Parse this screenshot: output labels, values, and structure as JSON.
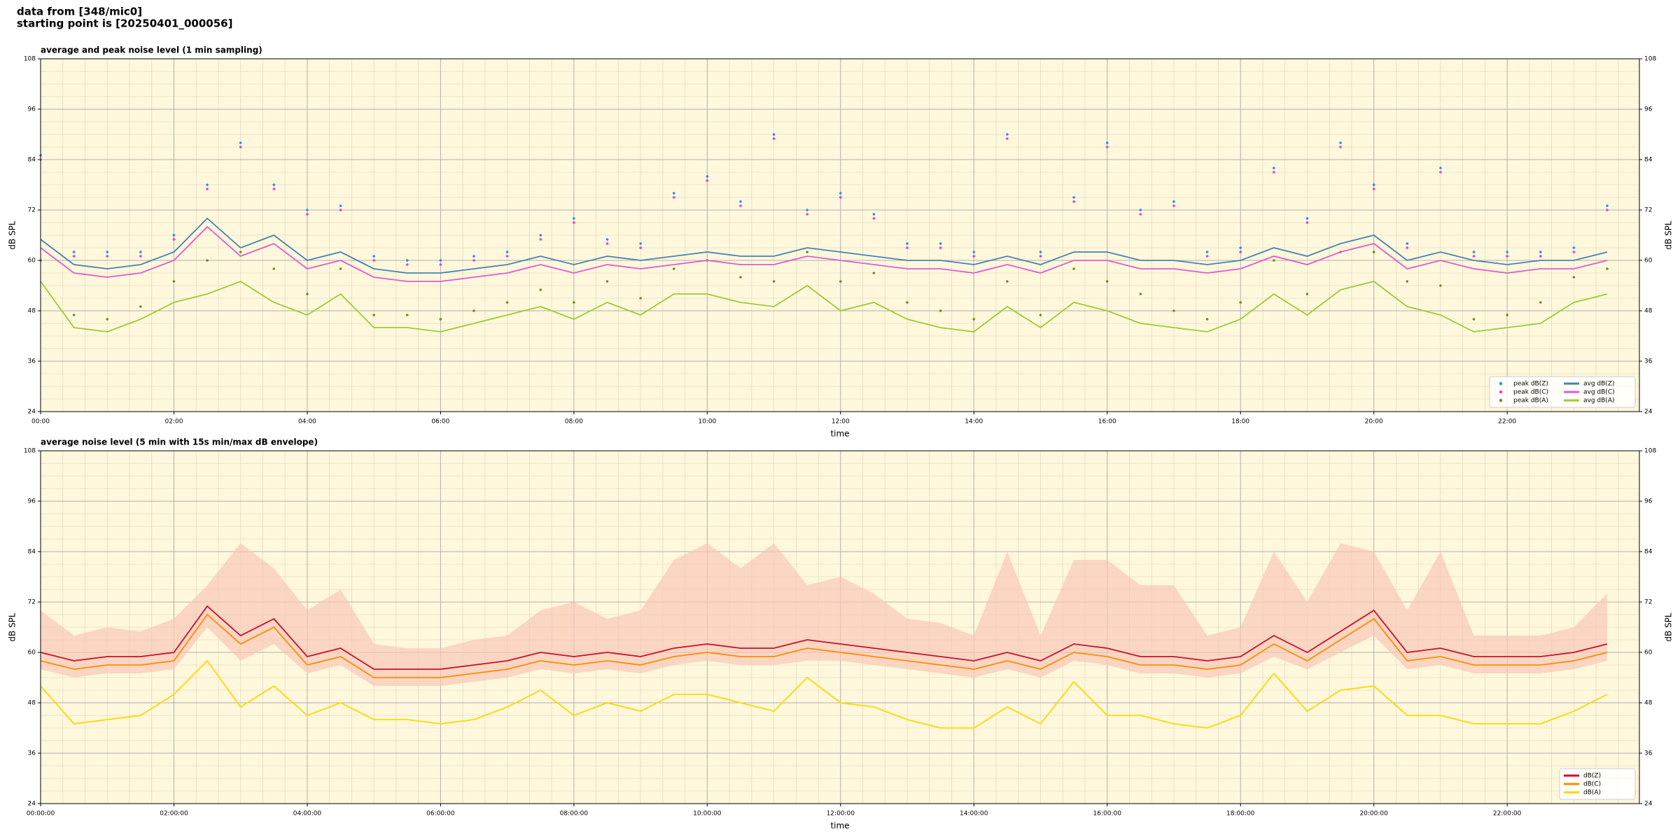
{
  "header": {
    "lines": [
      "data from [348/mic0]",
      "starting point is [20250401_000056]"
    ]
  },
  "chart_data": [
    {
      "type": "line",
      "title": "average and peak noise level (1 min sampling)",
      "xlabel": "time",
      "ylabel": "dB SPL",
      "legend": "lower right",
      "legend_columns": 2,
      "grid": true,
      "background": "#fff8dc",
      "xlim": [
        "00:00",
        "23:59"
      ],
      "xticks": [
        "00:00",
        "02:00",
        "04:00",
        "06:00",
        "08:00",
        "10:00",
        "12:00",
        "14:00",
        "16:00",
        "18:00",
        "20:00",
        "22:00"
      ],
      "ylim": [
        24,
        108
      ],
      "yticks": [
        24,
        36,
        48,
        60,
        72,
        84,
        96,
        108
      ],
      "x": [
        "00:00",
        "00:30",
        "01:00",
        "01:30",
        "02:00",
        "02:30",
        "03:00",
        "03:30",
        "04:00",
        "04:30",
        "05:00",
        "05:30",
        "06:00",
        "06:30",
        "07:00",
        "07:30",
        "08:00",
        "08:30",
        "09:00",
        "09:30",
        "10:00",
        "10:30",
        "11:00",
        "11:30",
        "12:00",
        "12:30",
        "13:00",
        "13:30",
        "14:00",
        "14:30",
        "15:00",
        "15:30",
        "16:00",
        "16:30",
        "17:00",
        "17:30",
        "18:00",
        "18:30",
        "19:00",
        "19:30",
        "20:00",
        "20:30",
        "21:00",
        "21:30",
        "22:00",
        "22:30",
        "23:00",
        "23:30"
      ],
      "series": [
        {
          "name": "peak dB(Z)",
          "mark": "dot",
          "color": "#1f8fff",
          "values": [
            85,
            62,
            62,
            62,
            66,
            78,
            88,
            78,
            72,
            73,
            61,
            60,
            60,
            61,
            62,
            66,
            70,
            65,
            64,
            76,
            80,
            74,
            90,
            72,
            76,
            71,
            64,
            64,
            62,
            90,
            62,
            75,
            88,
            72,
            74,
            62,
            63,
            82,
            70,
            88,
            78,
            64,
            82,
            62,
            62,
            62,
            63,
            73
          ]
        },
        {
          "name": "peak dB(C)",
          "mark": "dot",
          "color": "#ff33cc",
          "values": [
            84,
            61,
            61,
            61,
            65,
            77,
            87,
            77,
            71,
            72,
            60,
            59,
            59,
            60,
            61,
            65,
            69,
            64,
            63,
            75,
            79,
            73,
            89,
            71,
            75,
            70,
            63,
            63,
            61,
            89,
            61,
            74,
            87,
            71,
            73,
            61,
            62,
            81,
            69,
            87,
            77,
            63,
            81,
            61,
            61,
            61,
            62,
            72
          ]
        },
        {
          "name": "peak dB(A)",
          "mark": "dot",
          "color": "#6b8e23",
          "values": [
            60,
            47,
            46,
            49,
            55,
            60,
            62,
            58,
            52,
            58,
            47,
            47,
            46,
            48,
            50,
            53,
            50,
            55,
            51,
            58,
            60,
            56,
            55,
            62,
            55,
            57,
            50,
            48,
            46,
            55,
            47,
            58,
            55,
            52,
            48,
            46,
            50,
            60,
            52,
            62,
            62,
            55,
            54,
            46,
            47,
            50,
            56,
            58
          ]
        },
        {
          "name": "avg dB(Z)",
          "mark": "line",
          "color": "#4682b4",
          "values": [
            65,
            59,
            58,
            59,
            62,
            70,
            63,
            66,
            60,
            62,
            58,
            57,
            57,
            58,
            59,
            61,
            59,
            61,
            60,
            61,
            62,
            61,
            61,
            63,
            62,
            61,
            60,
            60,
            59,
            61,
            59,
            62,
            62,
            60,
            60,
            59,
            60,
            63,
            61,
            64,
            66,
            60,
            62,
            60,
            59,
            60,
            60,
            62
          ]
        },
        {
          "name": "avg dB(C)",
          "mark": "line",
          "color": "#e05ad0",
          "values": [
            63,
            57,
            56,
            57,
            60,
            68,
            61,
            64,
            58,
            60,
            56,
            55,
            55,
            56,
            57,
            59,
            57,
            59,
            58,
            59,
            60,
            59,
            59,
            61,
            60,
            59,
            58,
            58,
            57,
            59,
            57,
            60,
            60,
            58,
            58,
            57,
            58,
            61,
            59,
            62,
            64,
            58,
            60,
            58,
            57,
            58,
            58,
            60
          ]
        },
        {
          "name": "avg dB(A)",
          "mark": "line",
          "color": "#9acd32",
          "values": [
            55,
            44,
            43,
            46,
            50,
            52,
            55,
            50,
            47,
            52,
            44,
            44,
            43,
            45,
            47,
            49,
            46,
            50,
            47,
            52,
            52,
            50,
            49,
            54,
            48,
            50,
            46,
            44,
            43,
            49,
            44,
            50,
            48,
            45,
            44,
            43,
            46,
            52,
            47,
            53,
            55,
            49,
            47,
            43,
            44,
            45,
            50,
            52
          ]
        }
      ]
    },
    {
      "type": "line",
      "title": "average noise level (5 min with 15s min/max dB envelope)",
      "xlabel": "time",
      "ylabel": "dB SPL",
      "legend": "lower right",
      "legend_columns": 1,
      "grid": true,
      "background": "#fff8dc",
      "xlim": [
        "00:00:00",
        "23:59:00"
      ],
      "xticks": [
        "00:00:00",
        "02:00:00",
        "04:00:00",
        "06:00:00",
        "08:00:00",
        "10:00:00",
        "12:00:00",
        "14:00:00",
        "16:00:00",
        "18:00:00",
        "20:00:00",
        "22:00:00"
      ],
      "ylim": [
        24,
        108
      ],
      "yticks": [
        24,
        36,
        48,
        60,
        72,
        84,
        96,
        108
      ],
      "x": [
        "00:00:00",
        "00:30:00",
        "01:00:00",
        "01:30:00",
        "02:00:00",
        "02:30:00",
        "03:00:00",
        "03:30:00",
        "04:00:00",
        "04:30:00",
        "05:00:00",
        "05:30:00",
        "06:00:00",
        "06:30:00",
        "07:00:00",
        "07:30:00",
        "08:00:00",
        "08:30:00",
        "09:00:00",
        "09:30:00",
        "10:00:00",
        "10:30:00",
        "11:00:00",
        "11:30:00",
        "12:00:00",
        "12:30:00",
        "13:00:00",
        "13:30:00",
        "14:00:00",
        "14:30:00",
        "15:00:00",
        "15:30:00",
        "16:00:00",
        "16:30:00",
        "17:00:00",
        "17:30:00",
        "18:00:00",
        "18:30:00",
        "19:00:00",
        "19:30:00",
        "20:00:00",
        "20:30:00",
        "21:00:00",
        "21:30:00",
        "22:00:00",
        "22:30:00",
        "23:00:00",
        "23:30:00"
      ],
      "envelope": {
        "color": "#f8c8b8",
        "min": [
          56,
          54,
          55,
          55,
          56,
          66,
          58,
          62,
          55,
          57,
          52,
          52,
          52,
          53,
          54,
          56,
          55,
          56,
          55,
          57,
          58,
          57,
          57,
          58,
          58,
          57,
          56,
          55,
          54,
          56,
          54,
          58,
          57,
          55,
          55,
          54,
          55,
          59,
          56,
          60,
          64,
          56,
          57,
          55,
          55,
          55,
          56,
          58
        ],
        "max": [
          70,
          64,
          66,
          65,
          68,
          76,
          86,
          80,
          70,
          75,
          62,
          61,
          61,
          63,
          64,
          70,
          72,
          68,
          70,
          82,
          86,
          80,
          86,
          76,
          78,
          74,
          68,
          67,
          64,
          84,
          64,
          82,
          82,
          76,
          76,
          64,
          66,
          84,
          72,
          86,
          84,
          70,
          84,
          64,
          64,
          64,
          66,
          74
        ]
      },
      "series": [
        {
          "name": "dB(Z)",
          "mark": "line",
          "color": "#c8102e",
          "values": [
            60,
            58,
            59,
            59,
            60,
            71,
            64,
            68,
            59,
            61,
            56,
            56,
            56,
            57,
            58,
            60,
            59,
            60,
            59,
            61,
            62,
            61,
            61,
            63,
            62,
            61,
            60,
            59,
            58,
            60,
            58,
            62,
            61,
            59,
            59,
            58,
            59,
            64,
            60,
            65,
            70,
            60,
            61,
            59,
            59,
            59,
            60,
            62
          ]
        },
        {
          "name": "dB(C)",
          "mark": "line",
          "color": "#ff8c00",
          "values": [
            58,
            56,
            57,
            57,
            58,
            69,
            62,
            66,
            57,
            59,
            54,
            54,
            54,
            55,
            56,
            58,
            57,
            58,
            57,
            59,
            60,
            59,
            59,
            61,
            60,
            59,
            58,
            57,
            56,
            58,
            56,
            60,
            59,
            57,
            57,
            56,
            57,
            62,
            58,
            63,
            68,
            58,
            59,
            57,
            57,
            57,
            58,
            60
          ]
        },
        {
          "name": "dB(A)",
          "mark": "line",
          "color": "#ffd700",
          "values": [
            52,
            43,
            44,
            45,
            50,
            58,
            47,
            52,
            45,
            48,
            44,
            44,
            43,
            44,
            47,
            51,
            45,
            48,
            46,
            50,
            50,
            48,
            46,
            54,
            48,
            47,
            44,
            42,
            42,
            47,
            43,
            53,
            45,
            45,
            43,
            42,
            45,
            55,
            46,
            51,
            52,
            45,
            45,
            43,
            43,
            43,
            46,
            50
          ]
        }
      ]
    }
  ]
}
